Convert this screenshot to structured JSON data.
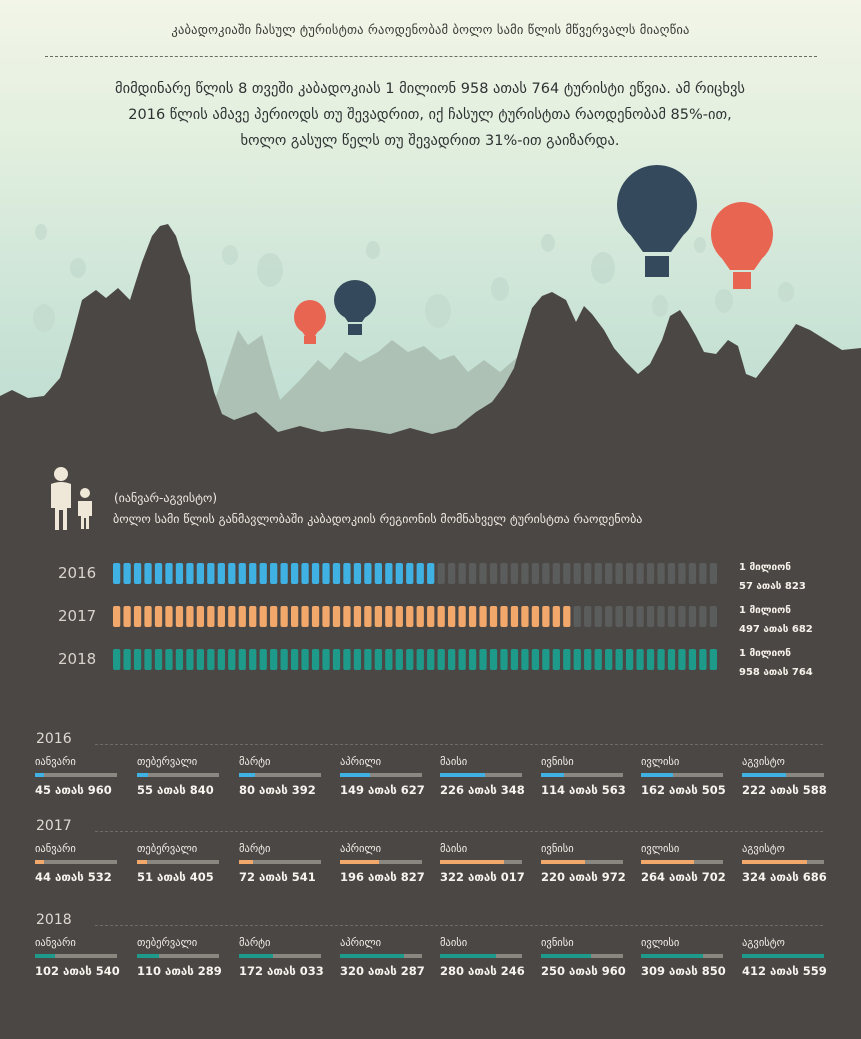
{
  "header": {
    "title": "კაბადოკიაში ჩასულ ტურისტთა რაოდენობამ ბოლო სამი წლის მწვერვალს მიაღწია",
    "intro": "მიმდინარე წლის 8 თვეში კაბადოკიას 1 მილიონ 958 ათას 764 ტურისტი ეწვია. ამ რიცხვს 2016 წლის ამავე პერიოდს თუ შევადრით, იქ ჩასულ ტურისტთა რაოდენობამ 85%-ით, ხოლო გასულ წელს თუ შევადრით 31%-ით გაიზარდა."
  },
  "section": {
    "period": "(იანვარ-აგვისტო)",
    "subtitle": "ბოლო სამი წლის განმავლობაში კაბადოკიის რეგიონის მომნახველ ტურისტთა რაოდენობა"
  },
  "colors": {
    "2016": "#3fb1e3",
    "2017": "#f3a86b",
    "2018": "#1e9a8b",
    "background": "#4b4745",
    "balloon_navy": "#344a5c",
    "balloon_red": "#e86552"
  },
  "chart_data": [
    {
      "type": "bar",
      "categories": [
        "2016",
        "2017",
        "2018"
      ],
      "values": [
        1057823,
        1497682,
        1958764
      ],
      "xmax": 1958764,
      "value_labels": [
        {
          "line1": "1 მილიონ",
          "line2": "57 ათას 823"
        },
        {
          "line1": "1 მილიონ",
          "line2": "497 ათას  682"
        },
        {
          "line1": "1 მილიონ",
          "line2": "958 ათას 764"
        }
      ]
    },
    {
      "type": "bar",
      "categories": [
        "იანვარი",
        "თებერვალი",
        "მარტი",
        "აპრილი",
        "მაისი",
        "ივნისი",
        "ივლისი",
        "აგვისტო"
      ],
      "xmax": 412559,
      "series": [
        {
          "name": "2016",
          "values": [
            45960,
            55840,
            80392,
            149627,
            226348,
            114563,
            162505,
            222588
          ],
          "labels": [
            "45 ათას 960",
            "55 ათას 840",
            "80 ათას  392",
            "149 ათას 627",
            "226 ათას 348",
            "114 ათას 563",
            "162 ათას 505",
            "222 ათას 588"
          ]
        },
        {
          "name": "2017",
          "values": [
            44532,
            51405,
            72541,
            196827,
            322017,
            220972,
            264702,
            324686
          ],
          "labels": [
            "44 ათას 532",
            "51 ათას 405",
            "72 ათას 541",
            "196 ათას 827",
            "322 ათას 017",
            "220 ათას 972",
            "264 ათას 702",
            "324 ათას 686"
          ]
        },
        {
          "name": "2018",
          "values": [
            102540,
            110289,
            172033,
            320287,
            280246,
            250960,
            309850,
            412559
          ],
          "labels": [
            "102 ათას 540",
            "110 ათას 289",
            "172 ათას 033",
            "320 ათას 287",
            "280 ათას 246",
            "250 ათას 960",
            "309 ათას 850",
            "412 ათას 559"
          ]
        }
      ]
    }
  ]
}
